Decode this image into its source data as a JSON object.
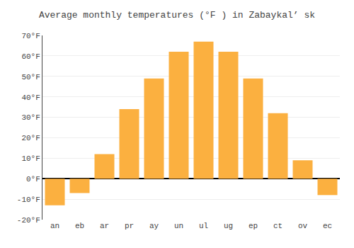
{
  "chart_data": {
    "type": "bar",
    "title": "Average monthly temperatures (°F ) in Zabaykal’ sk",
    "categories": [
      "an",
      "eb",
      "ar",
      "pr",
      "ay",
      "un",
      "ul",
      "ug",
      "ep",
      "ct",
      "ov",
      "ec"
    ],
    "values": [
      -13,
      -7,
      12,
      34,
      49,
      62,
      67,
      62,
      49,
      32,
      9,
      -8
    ],
    "color": "#FBB040",
    "ylim": [
      -20,
      70
    ],
    "yticks": [
      {
        "value": -20,
        "label": "-20°F"
      },
      {
        "value": -10,
        "label": "-10°F"
      },
      {
        "value": 0,
        "label": "0°F"
      },
      {
        "value": 10,
        "label": "10°F"
      },
      {
        "value": 20,
        "label": "20°F"
      },
      {
        "value": 30,
        "label": "30°F"
      },
      {
        "value": 40,
        "label": "40°F"
      },
      {
        "value": 50,
        "label": "50°F"
      },
      {
        "value": 60,
        "label": "60°F"
      },
      {
        "value": 70,
        "label": "70°F"
      }
    ],
    "grid": true
  }
}
